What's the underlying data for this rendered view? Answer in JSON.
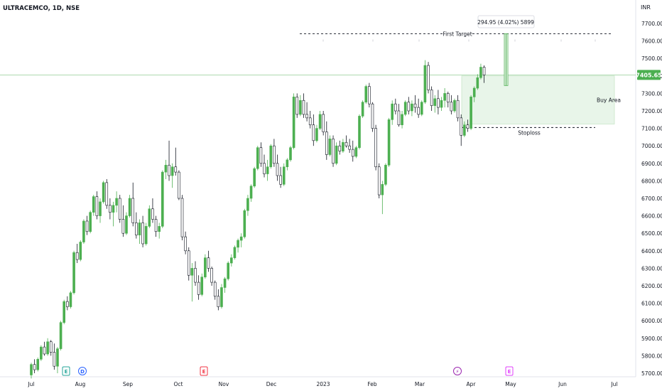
{
  "header": {
    "symbol_label": "ULTRACEMCO, 1D, NSE"
  },
  "chart_data": {
    "type": "candlestick",
    "title": "ULTRACEMCO, 1D, NSE",
    "currency_label": "INR",
    "ylim": [
      5680,
      7860
    ],
    "y_ticks": [
      "7700.00",
      "7600.00",
      "7500.00",
      "7400.00",
      "7300.00",
      "7200.00",
      "7100.00",
      "7000.00",
      "6900.00",
      "6800.00",
      "6700.00",
      "6600.00",
      "6500.00",
      "6400.00",
      "6300.00",
      "6200.00",
      "6100.00",
      "6000.00",
      "5900.00",
      "5800.00",
      "5700.00"
    ],
    "x_ticks": [
      "Jul",
      "Aug",
      "Sep",
      "Oct",
      "Nov",
      "Dec",
      "2023",
      "Feb",
      "Mar",
      "Apr",
      "May",
      "Jun",
      "Jul"
    ],
    "last_price": "7405.65",
    "last_price_value": 7405.65,
    "colors": {
      "up": "#4caf50",
      "down": "#ffffff",
      "outline": "#131722",
      "price_tag": "#4caf50",
      "buy_area": "#e8f5e9",
      "measure": "#4caf50"
    },
    "candles": [
      [
        5690,
        5760,
        5670,
        5750
      ],
      [
        5750,
        5780,
        5700,
        5720
      ],
      [
        5720,
        5790,
        5710,
        5780
      ],
      [
        5780,
        5860,
        5770,
        5850
      ],
      [
        5850,
        5880,
        5800,
        5810
      ],
      [
        5810,
        5900,
        5800,
        5880
      ],
      [
        5880,
        5890,
        5800,
        5820
      ],
      [
        5820,
        5870,
        5720,
        5740
      ],
      [
        5740,
        5850,
        5700,
        5840
      ],
      [
        5840,
        6000,
        5830,
        5990
      ],
      [
        5990,
        6120,
        5980,
        6110
      ],
      [
        6110,
        6140,
        6060,
        6080
      ],
      [
        6080,
        6170,
        6070,
        6160
      ],
      [
        6160,
        6400,
        6150,
        6390
      ],
      [
        6390,
        6440,
        6330,
        6350
      ],
      [
        6350,
        6460,
        6340,
        6450
      ],
      [
        6450,
        6580,
        6440,
        6570
      ],
      [
        6570,
        6600,
        6490,
        6510
      ],
      [
        6510,
        6630,
        6500,
        6620
      ],
      [
        6620,
        6720,
        6600,
        6710
      ],
      [
        6710,
        6740,
        6580,
        6600
      ],
      [
        6600,
        6700,
        6560,
        6680
      ],
      [
        6680,
        6800,
        6670,
        6790
      ],
      [
        6790,
        6810,
        6640,
        6660
      ],
      [
        6660,
        6700,
        6580,
        6620
      ],
      [
        6620,
        6680,
        6540,
        6660
      ],
      [
        6660,
        6740,
        6620,
        6700
      ],
      [
        6700,
        6720,
        6560,
        6580
      ],
      [
        6580,
        6660,
        6480,
        6500
      ],
      [
        6500,
        6620,
        6490,
        6600
      ],
      [
        6600,
        6720,
        6590,
        6700
      ],
      [
        6700,
        6790,
        6540,
        6560
      ],
      [
        6560,
        6620,
        6470,
        6490
      ],
      [
        6490,
        6580,
        6440,
        6560
      ],
      [
        6560,
        6600,
        6420,
        6440
      ],
      [
        6440,
        6560,
        6430,
        6540
      ],
      [
        6540,
        6660,
        6530,
        6640
      ],
      [
        6640,
        6700,
        6560,
        6580
      ],
      [
        6580,
        6600,
        6480,
        6510
      ],
      [
        6510,
        6560,
        6470,
        6540
      ],
      [
        6540,
        6860,
        6530,
        6850
      ],
      [
        6850,
        6920,
        6810,
        6890
      ],
      [
        6890,
        7030,
        6800,
        6830
      ],
      [
        6830,
        6900,
        6760,
        6880
      ],
      [
        6880,
        6990,
        6830,
        6850
      ],
      [
        6850,
        6860,
        6690,
        6700
      ],
      [
        6700,
        6720,
        6460,
        6480
      ],
      [
        6480,
        6510,
        6380,
        6400
      ],
      [
        6400,
        6420,
        6230,
        6260
      ],
      [
        6260,
        6330,
        6110,
        6300
      ],
      [
        6300,
        6340,
        6200,
        6220
      ],
      [
        6220,
        6260,
        6120,
        6150
      ],
      [
        6150,
        6270,
        6140,
        6250
      ],
      [
        6250,
        6380,
        6240,
        6360
      ],
      [
        6360,
        6400,
        6280,
        6300
      ],
      [
        6300,
        6310,
        6200,
        6220
      ],
      [
        6220,
        6230,
        6120,
        6140
      ],
      [
        6140,
        6180,
        6060,
        6080
      ],
      [
        6080,
        6210,
        6070,
        6190
      ],
      [
        6190,
        6250,
        6160,
        6240
      ],
      [
        6240,
        6340,
        6230,
        6330
      ],
      [
        6330,
        6380,
        6310,
        6360
      ],
      [
        6360,
        6430,
        6350,
        6420
      ],
      [
        6420,
        6470,
        6390,
        6460
      ],
      [
        6460,
        6500,
        6420,
        6480
      ],
      [
        6480,
        6640,
        6470,
        6630
      ],
      [
        6630,
        6720,
        6600,
        6700
      ],
      [
        6700,
        6780,
        6680,
        6770
      ],
      [
        6770,
        6880,
        6760,
        6870
      ],
      [
        6870,
        7000,
        6860,
        6990
      ],
      [
        6990,
        7020,
        6880,
        6900
      ],
      [
        6900,
        6950,
        6820,
        6840
      ],
      [
        6840,
        6920,
        6800,
        6880
      ],
      [
        6880,
        7010,
        6870,
        7000
      ],
      [
        7000,
        7040,
        6880,
        6900
      ],
      [
        6900,
        6950,
        6800,
        6830
      ],
      [
        6830,
        6880,
        6760,
        6780
      ],
      [
        6780,
        6900,
        6770,
        6880
      ],
      [
        6880,
        6930,
        6860,
        6920
      ],
      [
        6920,
        7000,
        6910,
        6990
      ],
      [
        6990,
        7300,
        6980,
        7280
      ],
      [
        7280,
        7300,
        7160,
        7180
      ],
      [
        7180,
        7290,
        7170,
        7260
      ],
      [
        7260,
        7300,
        7160,
        7180
      ],
      [
        7180,
        7250,
        7140,
        7160
      ],
      [
        7160,
        7200,
        7100,
        7120
      ],
      [
        7120,
        7180,
        7000,
        7030
      ],
      [
        7030,
        7120,
        7020,
        7100
      ],
      [
        7100,
        7200,
        7090,
        7180
      ],
      [
        7180,
        7200,
        7060,
        7080
      ],
      [
        7080,
        7140,
        6920,
        6950
      ],
      [
        6950,
        7060,
        6940,
        7040
      ],
      [
        7040,
        7060,
        6880,
        6900
      ],
      [
        6900,
        7020,
        6890,
        7000
      ],
      [
        7000,
        7030,
        6950,
        6970
      ],
      [
        6970,
        7040,
        6960,
        7020
      ],
      [
        7020,
        7060,
        6990,
        7000
      ],
      [
        7000,
        7040,
        6960,
        6980
      ],
      [
        6980,
        7030,
        6910,
        6940
      ],
      [
        6940,
        7000,
        6930,
        6990
      ],
      [
        6990,
        7180,
        6980,
        7170
      ],
      [
        7170,
        7260,
        7160,
        7250
      ],
      [
        7250,
        7350,
        7240,
        7340
      ],
      [
        7340,
        7360,
        7220,
        7240
      ],
      [
        7240,
        7250,
        7080,
        7100
      ],
      [
        7100,
        7120,
        6860,
        6880
      ],
      [
        6880,
        6900,
        6700,
        6720
      ],
      [
        6720,
        6800,
        6610,
        6780
      ],
      [
        6780,
        6900,
        6770,
        6890
      ],
      [
        6890,
        7160,
        6880,
        7150
      ],
      [
        7150,
        7260,
        7120,
        7240
      ],
      [
        7240,
        7270,
        7180,
        7200
      ],
      [
        7200,
        7240,
        7110,
        7120
      ],
      [
        7120,
        7200,
        7100,
        7180
      ],
      [
        7180,
        7260,
        7170,
        7250
      ],
      [
        7250,
        7280,
        7180,
        7200
      ],
      [
        7200,
        7260,
        7170,
        7240
      ],
      [
        7240,
        7290,
        7190,
        7220
      ],
      [
        7220,
        7270,
        7160,
        7180
      ],
      [
        7180,
        7260,
        7170,
        7250
      ],
      [
        7250,
        7490,
        7240,
        7460
      ],
      [
        7460,
        7480,
        7300,
        7320
      ],
      [
        7320,
        7340,
        7200,
        7230
      ],
      [
        7230,
        7290,
        7190,
        7270
      ],
      [
        7270,
        7320,
        7180,
        7220
      ],
      [
        7220,
        7280,
        7200,
        7260
      ],
      [
        7260,
        7330,
        7220,
        7300
      ],
      [
        7300,
        7310,
        7220,
        7250
      ],
      [
        7250,
        7290,
        7180,
        7200
      ],
      [
        7200,
        7270,
        7190,
        7260
      ],
      [
        7260,
        7290,
        7140,
        7160
      ],
      [
        7160,
        7180,
        7000,
        7060
      ],
      [
        7060,
        7140,
        7050,
        7120
      ],
      [
        7120,
        7150,
        7080,
        7100
      ],
      [
        7100,
        7290,
        7090,
        7280
      ],
      [
        7280,
        7340,
        7250,
        7330
      ],
      [
        7330,
        7410,
        7320,
        7390
      ],
      [
        7390,
        7470,
        7380,
        7450
      ],
      [
        7450,
        7460,
        7360,
        7405.65
      ]
    ],
    "annotations": {
      "first_target_label": "First Target",
      "first_target_price": 7641,
      "measure_label": "294.95 (4.02%) 5899",
      "measure_from": 7345,
      "measure_to": 7641,
      "buy_area_label": "Buy Area",
      "buy_area_top": 7400,
      "buy_area_bottom": 7125,
      "stoploss_label": "Stoploss",
      "stoploss_price": 7105
    },
    "events": [
      {
        "letter": "E",
        "color": "#26a69a",
        "kind": "earnings"
      },
      {
        "letter": "D",
        "color": "#2962ff",
        "kind": "dividend"
      },
      {
        "letter": "E",
        "color": "#f23645",
        "kind": "earnings"
      },
      {
        "letter": "⚡",
        "color": "#9c27b0",
        "kind": "split"
      },
      {
        "letter": "E",
        "color": "#e040fb",
        "kind": "earnings"
      }
    ]
  }
}
